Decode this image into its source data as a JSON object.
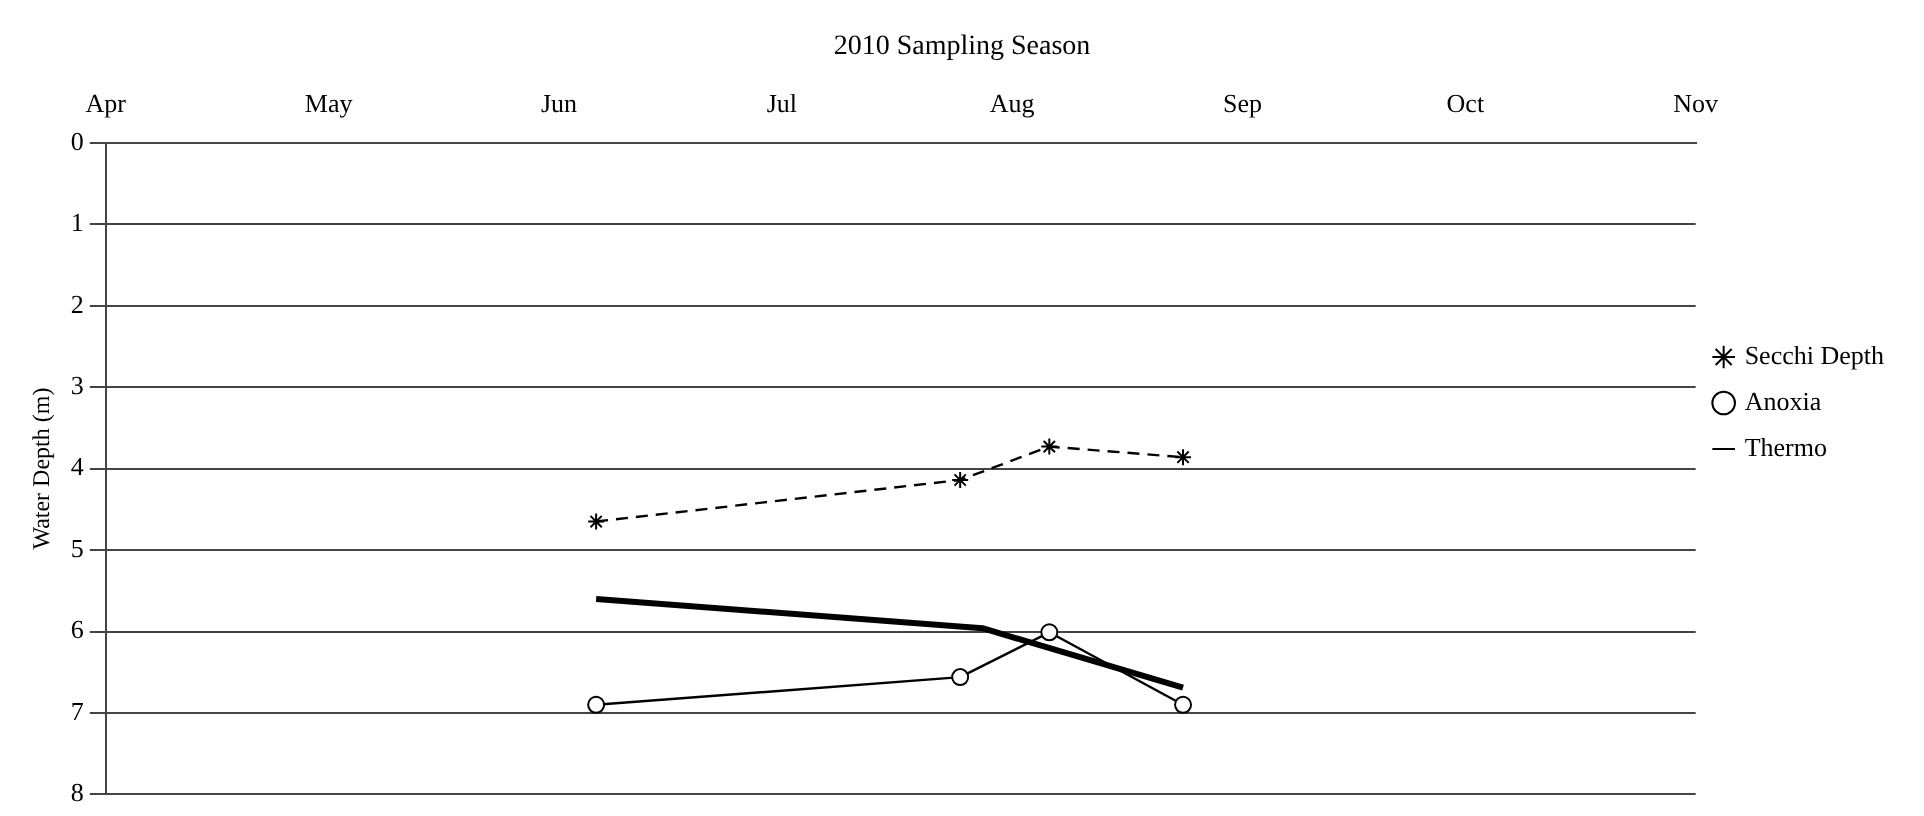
{
  "chart_data": {
    "type": "line",
    "title": "2010 Sampling Season",
    "ylabel": "Water Depth (m)",
    "xlim": [
      "2010-04-01",
      "2010-11-01"
    ],
    "xticks": [
      {
        "value": "2010-04-01",
        "label": "Apr"
      },
      {
        "value": "2010-05-01",
        "label": "May"
      },
      {
        "value": "2010-06-01",
        "label": "Jun"
      },
      {
        "value": "2010-07-01",
        "label": "Jul"
      },
      {
        "value": "2010-08-01",
        "label": "Aug"
      },
      {
        "value": "2010-09-01",
        "label": "Sep"
      },
      {
        "value": "2010-10-01",
        "label": "Oct"
      },
      {
        "value": "2010-11-01",
        "label": "Nov"
      }
    ],
    "ylim": [
      8,
      0
    ],
    "yticks": [
      0,
      1,
      2,
      3,
      4,
      5,
      6,
      7,
      8
    ],
    "grid": "y",
    "legend": "right",
    "series": [
      {
        "name": "Secchi Depth",
        "color": "#000000",
        "marker": "cross",
        "line_style": "dashed",
        "x": [
          "2010-06-06",
          "2010-07-25",
          "2010-08-06",
          "2010-08-24"
        ],
        "values": [
          4.65,
          4.14,
          3.73,
          3.86
        ]
      },
      {
        "name": "Anoxia",
        "color": "#000000",
        "marker": "circle",
        "line_style": "solid",
        "x": [
          "2010-06-06",
          "2010-07-25",
          "2010-08-06",
          "2010-08-24"
        ],
        "values": [
          6.9,
          6.56,
          6.01,
          6.9
        ]
      },
      {
        "name": "Thermo",
        "color": "#000000",
        "marker": "none",
        "line_style": "solid",
        "x": [
          "2010-06-06",
          "2010-07-28",
          "2010-08-24"
        ],
        "values": [
          5.6,
          5.96,
          6.69
        ]
      }
    ]
  }
}
